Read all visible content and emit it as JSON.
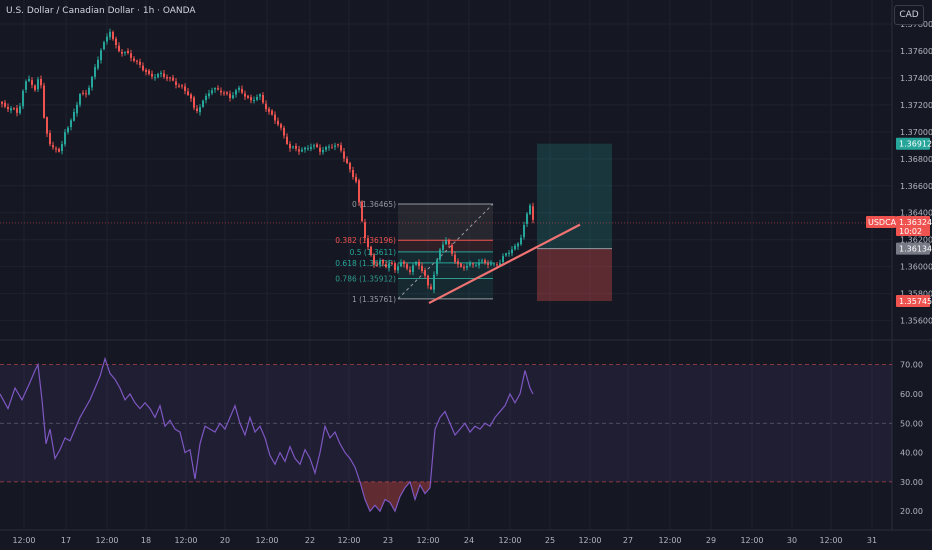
{
  "header": {
    "title": "U.S. Dollar / Canadian Dollar · 1h · OANDA",
    "currency_button": "CAD"
  },
  "colors": {
    "up": "#26a69a",
    "down": "#ef5350",
    "bg": "#151822",
    "rsi": "#7e57c2"
  },
  "price_tags": {
    "target": "1.36912",
    "symbol": "USDCAD",
    "last": "1.36324",
    "countdown": "10:02",
    "entry": "1.36134",
    "stop": "1.35745"
  },
  "fib_levels": [
    {
      "label": "0 (1.36465)",
      "price": 1.36465,
      "color": "#9598a1"
    },
    {
      "label": "0.382 (1.36196)",
      "price": 1.36196,
      "color": "#ef5350"
    },
    {
      "label": "0.5 (1.3611)",
      "price": 1.3611,
      "color": "#26a69a"
    },
    {
      "label": "0.618 (1.36028)",
      "price": 1.36028,
      "color": "#26a69a"
    },
    {
      "label": "0.786 (1.35912)",
      "price": 1.35912,
      "color": "#2e9b8e"
    },
    {
      "label": "1 (1.35761)",
      "price": 1.35761,
      "color": "#9598a1"
    }
  ],
  "chart_data": [
    {
      "type": "candlestick",
      "title": "U.S. Dollar / Canadian Dollar · 1h · OANDA",
      "ylim": [
        1.3553,
        1.3783
      ],
      "y_ticks": [
        "1.37800",
        "1.37600",
        "1.37400",
        "1.37200",
        "1.37000",
        "1.36800",
        "1.36600",
        "1.36400",
        "1.36200",
        "1.36000",
        "1.35800",
        "1.35600"
      ],
      "y_tick_values": [
        1.378,
        1.376,
        1.374,
        1.372,
        1.37,
        1.368,
        1.366,
        1.364,
        1.362,
        1.36,
        1.358,
        1.356
      ],
      "x_ticks": [
        "12:00",
        "17",
        "12:00",
        "18",
        "12:00",
        "20",
        "12:00",
        "22",
        "12:00",
        "23",
        "12:00",
        "24",
        "12:00",
        "25",
        "12:00",
        "27",
        "12:00",
        "29",
        "12:00",
        "30",
        "12:00",
        "31"
      ],
      "anchor_path": [
        [
          0,
          1.3722
        ],
        [
          6,
          1.3716
        ],
        [
          12,
          1.372
        ],
        [
          18,
          1.3712
        ],
        [
          24,
          1.3734
        ],
        [
          30,
          1.374
        ],
        [
          35,
          1.3732
        ],
        [
          40,
          1.3742
        ],
        [
          45,
          1.3703
        ],
        [
          50,
          1.369
        ],
        [
          55,
          1.369
        ],
        [
          60,
          1.3683
        ],
        [
          65,
          1.37
        ],
        [
          70,
          1.3705
        ],
        [
          75,
          1.3718
        ],
        [
          80,
          1.3728
        ],
        [
          85,
          1.3726
        ],
        [
          90,
          1.3735
        ],
        [
          95,
          1.3748
        ],
        [
          100,
          1.376
        ],
        [
          105,
          1.3766
        ],
        [
          110,
          1.3775
        ],
        [
          115,
          1.3765
        ],
        [
          120,
          1.376
        ],
        [
          130,
          1.3756
        ],
        [
          140,
          1.375
        ],
        [
          150,
          1.374
        ],
        [
          160,
          1.3744
        ],
        [
          170,
          1.3738
        ],
        [
          180,
          1.3735
        ],
        [
          190,
          1.3726
        ],
        [
          195,
          1.3714
        ],
        [
          200,
          1.372
        ],
        [
          210,
          1.373
        ],
        [
          220,
          1.3732
        ],
        [
          230,
          1.3725
        ],
        [
          240,
          1.3733
        ],
        [
          250,
          1.3722
        ],
        [
          260,
          1.3727
        ],
        [
          270,
          1.3713
        ],
        [
          280,
          1.3704
        ],
        [
          290,
          1.3688
        ],
        [
          300,
          1.3686
        ],
        [
          310,
          1.369
        ],
        [
          320,
          1.3686
        ],
        [
          330,
          1.369
        ],
        [
          340,
          1.3688
        ],
        [
          345,
          1.368
        ],
        [
          350,
          1.3672
        ],
        [
          356,
          1.3663
        ],
        [
          360,
          1.364
        ],
        [
          365,
          1.3623
        ],
        [
          370,
          1.361
        ],
        [
          375,
          1.36
        ],
        [
          380,
          1.3603
        ],
        [
          385,
          1.36
        ],
        [
          390,
          1.3605
        ],
        [
          395,
          1.3597
        ],
        [
          400,
          1.3603
        ],
        [
          405,
          1.36
        ],
        [
          410,
          1.3598
        ],
        [
          415,
          1.3603
        ],
        [
          420,
          1.36
        ],
        [
          425,
          1.3592
        ],
        [
          430,
          1.3582
        ],
        [
          435,
          1.3598
        ],
        [
          440,
          1.3612
        ],
        [
          445,
          1.362
        ],
        [
          450,
          1.3615
        ],
        [
          455,
          1.3605
        ],
        [
          460,
          1.3598
        ],
        [
          470,
          1.3602
        ],
        [
          480,
          1.3603
        ],
        [
          490,
          1.3602
        ],
        [
          500,
          1.3603
        ],
        [
          505,
          1.3608
        ],
        [
          510,
          1.3612
        ],
        [
          515,
          1.3615
        ],
        [
          520,
          1.362
        ],
        [
          525,
          1.3632
        ],
        [
          530,
          1.3646
        ],
        [
          533,
          1.3636
        ]
      ],
      "trendline": [
        [
          429,
          1.3573
        ],
        [
          580,
          1.36312
        ]
      ],
      "position": {
        "target": 1.36912,
        "entry": 1.36134,
        "stop": 1.35745
      }
    },
    {
      "type": "line",
      "title": "RSI",
      "ylim": [
        17,
        75
      ],
      "y_ticks": [
        "70.00",
        "60.00",
        "50.00",
        "40.00",
        "30.00",
        "20.00"
      ],
      "y_tick_values": [
        70,
        60,
        50,
        40,
        30,
        20
      ],
      "bands": {
        "upper": 70,
        "middle": 50,
        "lower": 30
      },
      "anchor_path": [
        [
          0,
          60
        ],
        [
          8,
          55
        ],
        [
          15,
          62
        ],
        [
          22,
          58
        ],
        [
          30,
          64
        ],
        [
          35,
          68
        ],
        [
          38,
          70
        ],
        [
          42,
          58
        ],
        [
          46,
          43
        ],
        [
          50,
          48
        ],
        [
          55,
          38
        ],
        [
          60,
          41
        ],
        [
          65,
          45
        ],
        [
          70,
          44
        ],
        [
          75,
          48
        ],
        [
          80,
          52
        ],
        [
          85,
          55
        ],
        [
          90,
          58
        ],
        [
          95,
          62
        ],
        [
          100,
          66
        ],
        [
          105,
          72
        ],
        [
          110,
          67
        ],
        [
          115,
          65
        ],
        [
          120,
          62
        ],
        [
          125,
          58
        ],
        [
          130,
          60
        ],
        [
          135,
          57
        ],
        [
          140,
          55
        ],
        [
          145,
          57
        ],
        [
          150,
          55
        ],
        [
          155,
          52
        ],
        [
          160,
          56
        ],
        [
          165,
          49
        ],
        [
          170,
          51
        ],
        [
          175,
          48
        ],
        [
          180,
          47
        ],
        [
          185,
          40
        ],
        [
          190,
          41
        ],
        [
          195,
          31
        ],
        [
          200,
          43
        ],
        [
          205,
          49
        ],
        [
          210,
          48
        ],
        [
          215,
          47
        ],
        [
          220,
          50
        ],
        [
          225,
          48
        ],
        [
          230,
          52
        ],
        [
          235,
          56
        ],
        [
          240,
          50
        ],
        [
          245,
          46
        ],
        [
          250,
          52
        ],
        [
          255,
          47
        ],
        [
          260,
          49
        ],
        [
          265,
          45
        ],
        [
          270,
          39
        ],
        [
          275,
          36
        ],
        [
          280,
          40
        ],
        [
          285,
          37
        ],
        [
          290,
          42
        ],
        [
          295,
          38
        ],
        [
          300,
          36
        ],
        [
          305,
          41
        ],
        [
          310,
          38
        ],
        [
          315,
          33
        ],
        [
          320,
          40
        ],
        [
          325,
          49
        ],
        [
          330,
          45
        ],
        [
          335,
          47
        ],
        [
          340,
          43
        ],
        [
          345,
          40
        ],
        [
          350,
          38
        ],
        [
          355,
          35
        ],
        [
          360,
          30
        ],
        [
          365,
          24
        ],
        [
          370,
          20
        ],
        [
          375,
          22
        ],
        [
          380,
          20
        ],
        [
          385,
          24
        ],
        [
          390,
          23
        ],
        [
          395,
          20
        ],
        [
          400,
          25
        ],
        [
          405,
          28
        ],
        [
          410,
          30
        ],
        [
          415,
          24
        ],
        [
          420,
          29
        ],
        [
          425,
          26
        ],
        [
          430,
          28
        ],
        [
          435,
          48
        ],
        [
          440,
          52
        ],
        [
          445,
          54
        ],
        [
          450,
          50
        ],
        [
          455,
          46
        ],
        [
          460,
          48
        ],
        [
          465,
          50
        ],
        [
          470,
          47
        ],
        [
          475,
          49
        ],
        [
          480,
          48
        ],
        [
          485,
          50
        ],
        [
          490,
          49
        ],
        [
          495,
          52
        ],
        [
          500,
          54
        ],
        [
          505,
          56
        ],
        [
          510,
          60
        ],
        [
          515,
          57
        ],
        [
          520,
          60
        ],
        [
          525,
          68
        ],
        [
          530,
          62
        ],
        [
          533,
          60
        ]
      ]
    }
  ]
}
